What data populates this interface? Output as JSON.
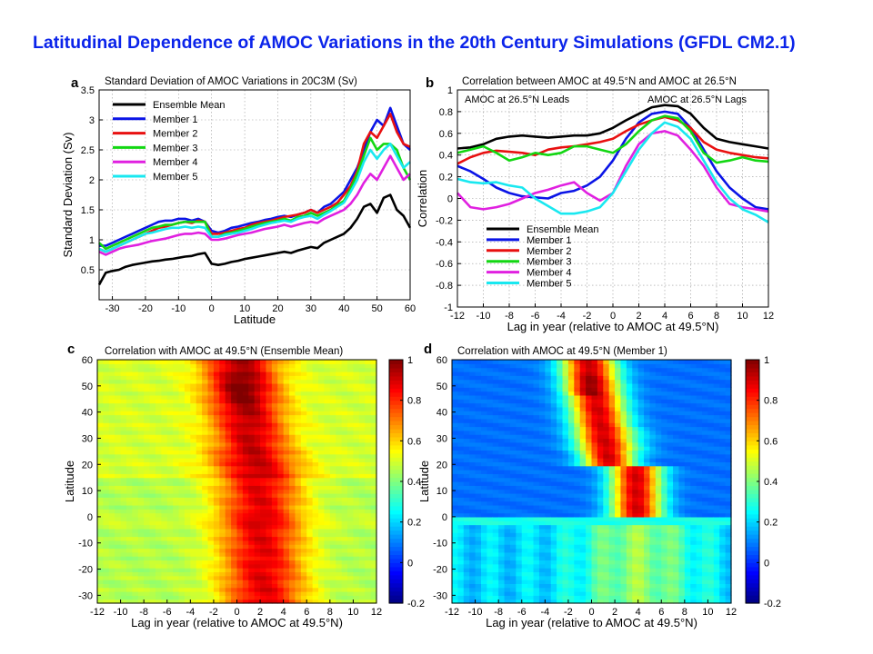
{
  "slide_title": "Latitudinal Dependence of AMOC Variations in the 20th Century Simulations (GFDL CM2.1)",
  "colors": {
    "title": "#0b24ea",
    "Ensemble Mean": "#000000",
    "Member 1": "#0a14e6",
    "Member 2": "#e81010",
    "Member 3": "#12d712",
    "Member 4": "#e020e0",
    "Member 5": "#19e8f0"
  },
  "chart_data": [
    {
      "panel": "a",
      "type": "line",
      "title": "Standard Deviation of AMOC Variations in 20C3M (Sv)",
      "xlabel": "Latitude",
      "ylabel": "Standard Deviation (Sv)",
      "xlim": [
        -34,
        60
      ],
      "ylim": [
        0,
        3.5
      ],
      "xticks": [
        -30,
        -20,
        -10,
        0,
        10,
        20,
        30,
        40,
        50,
        60
      ],
      "yticks": [
        0.5,
        1,
        1.5,
        2,
        2.5,
        3,
        3.5
      ],
      "grid": true,
      "legend": "top-left",
      "x": [
        -34,
        -32,
        -30,
        -28,
        -26,
        -24,
        -22,
        -20,
        -18,
        -16,
        -14,
        -12,
        -10,
        -8,
        -6,
        -4,
        -2,
        0,
        2,
        4,
        6,
        8,
        10,
        12,
        14,
        16,
        18,
        20,
        22,
        24,
        26,
        28,
        30,
        32,
        34,
        36,
        38,
        40,
        42,
        44,
        46,
        48,
        50,
        52,
        54,
        56,
        58,
        60
      ],
      "series": [
        {
          "name": "Ensemble Mean",
          "values": [
            0.25,
            0.45,
            0.48,
            0.5,
            0.55,
            0.58,
            0.6,
            0.62,
            0.64,
            0.65,
            0.67,
            0.68,
            0.7,
            0.72,
            0.73,
            0.76,
            0.78,
            0.6,
            0.58,
            0.6,
            0.63,
            0.65,
            0.68,
            0.7,
            0.72,
            0.74,
            0.76,
            0.78,
            0.8,
            0.78,
            0.82,
            0.85,
            0.88,
            0.86,
            0.95,
            1.0,
            1.05,
            1.1,
            1.2,
            1.35,
            1.55,
            1.6,
            1.45,
            1.7,
            1.75,
            1.5,
            1.4,
            1.2
          ]
        },
        {
          "name": "Member 1",
          "values": [
            0.9,
            0.9,
            0.95,
            1.0,
            1.05,
            1.1,
            1.15,
            1.2,
            1.25,
            1.3,
            1.32,
            1.32,
            1.35,
            1.35,
            1.32,
            1.35,
            1.3,
            1.15,
            1.12,
            1.15,
            1.2,
            1.22,
            1.25,
            1.28,
            1.3,
            1.33,
            1.35,
            1.38,
            1.4,
            1.38,
            1.42,
            1.45,
            1.5,
            1.45,
            1.55,
            1.6,
            1.7,
            1.8,
            2.0,
            2.2,
            2.5,
            2.8,
            3.0,
            2.9,
            3.2,
            2.9,
            2.6,
            2.5
          ]
        },
        {
          "name": "Member 2",
          "values": [
            0.85,
            0.8,
            0.85,
            0.9,
            0.95,
            1.0,
            1.05,
            1.1,
            1.15,
            1.2,
            1.22,
            1.25,
            1.28,
            1.3,
            1.28,
            1.32,
            1.3,
            1.1,
            1.1,
            1.12,
            1.15,
            1.18,
            1.2,
            1.25,
            1.28,
            1.3,
            1.32,
            1.35,
            1.38,
            1.4,
            1.42,
            1.45,
            1.5,
            1.45,
            1.5,
            1.55,
            1.62,
            1.75,
            1.9,
            2.15,
            2.6,
            2.8,
            2.7,
            2.9,
            3.1,
            2.8,
            2.6,
            2.55
          ]
        },
        {
          "name": "Member 3",
          "values": [
            0.95,
            0.85,
            0.9,
            0.95,
            1.0,
            1.05,
            1.1,
            1.15,
            1.2,
            1.22,
            1.25,
            1.25,
            1.28,
            1.3,
            1.3,
            1.3,
            1.3,
            1.05,
            1.05,
            1.1,
            1.12,
            1.15,
            1.18,
            1.22,
            1.25,
            1.28,
            1.3,
            1.32,
            1.35,
            1.32,
            1.38,
            1.4,
            1.45,
            1.4,
            1.45,
            1.5,
            1.58,
            1.65,
            1.85,
            2.1,
            2.4,
            2.7,
            2.5,
            2.6,
            2.6,
            2.5,
            2.2,
            2.0
          ]
        },
        {
          "name": "Member 4",
          "values": [
            0.8,
            0.75,
            0.8,
            0.85,
            0.88,
            0.9,
            0.92,
            0.95,
            0.98,
            1.0,
            1.02,
            1.05,
            1.08,
            1.1,
            1.1,
            1.12,
            1.1,
            1.0,
            1.0,
            1.02,
            1.05,
            1.08,
            1.1,
            1.12,
            1.15,
            1.18,
            1.2,
            1.22,
            1.25,
            1.22,
            1.25,
            1.28,
            1.3,
            1.28,
            1.35,
            1.4,
            1.45,
            1.5,
            1.6,
            1.75,
            1.95,
            2.1,
            2.0,
            2.2,
            2.4,
            2.2,
            2.0,
            2.1
          ]
        },
        {
          "name": "Member 5",
          "values": [
            0.85,
            0.8,
            0.85,
            0.9,
            0.95,
            1.0,
            1.05,
            1.1,
            1.12,
            1.15,
            1.18,
            1.2,
            1.2,
            1.22,
            1.2,
            1.22,
            1.2,
            1.05,
            1.05,
            1.08,
            1.1,
            1.12,
            1.15,
            1.18,
            1.22,
            1.25,
            1.28,
            1.3,
            1.32,
            1.3,
            1.35,
            1.38,
            1.4,
            1.35,
            1.42,
            1.48,
            1.55,
            1.62,
            1.8,
            2.0,
            2.3,
            2.5,
            2.35,
            2.5,
            2.6,
            2.4,
            2.2,
            2.3
          ]
        }
      ]
    },
    {
      "panel": "b",
      "type": "line",
      "title": "Correlation between AMOC at 49.5°N  and AMOC at 26.5°N",
      "annotations": [
        "AMOC at 26.5°N Leads",
        "AMOC at 26.5°N Lags"
      ],
      "xlabel": "Lag in year (relative to AMOC at 49.5°N)",
      "ylabel": "Correlation",
      "xlim": [
        -12,
        12
      ],
      "ylim": [
        -1,
        1
      ],
      "xticks": [
        -12,
        -10,
        -8,
        -6,
        -4,
        -2,
        0,
        2,
        4,
        6,
        8,
        10,
        12
      ],
      "yticks": [
        -1,
        -0.8,
        -0.6,
        -0.4,
        -0.2,
        0,
        0.2,
        0.4,
        0.6,
        0.8,
        1
      ],
      "grid": true,
      "legend": "bottom-left",
      "x": [
        -12,
        -11,
        -10,
        -9,
        -8,
        -7,
        -6,
        -5,
        -4,
        -3,
        -2,
        -1,
        0,
        1,
        2,
        3,
        4,
        5,
        6,
        7,
        8,
        9,
        10,
        11,
        12
      ],
      "series": [
        {
          "name": "Ensemble Mean",
          "values": [
            0.46,
            0.47,
            0.5,
            0.55,
            0.57,
            0.58,
            0.57,
            0.56,
            0.57,
            0.58,
            0.58,
            0.6,
            0.65,
            0.72,
            0.78,
            0.84,
            0.86,
            0.85,
            0.78,
            0.65,
            0.55,
            0.52,
            0.5,
            0.48,
            0.46
          ]
        },
        {
          "name": "Member 1",
          "values": [
            0.3,
            0.25,
            0.18,
            0.1,
            0.05,
            0.02,
            0.01,
            0.0,
            0.05,
            0.07,
            0.12,
            0.2,
            0.35,
            0.55,
            0.7,
            0.78,
            0.8,
            0.78,
            0.65,
            0.45,
            0.25,
            0.1,
            0.0,
            -0.08,
            -0.1
          ]
        },
        {
          "name": "Member 2",
          "values": [
            0.32,
            0.38,
            0.42,
            0.44,
            0.43,
            0.42,
            0.4,
            0.45,
            0.47,
            0.48,
            0.5,
            0.52,
            0.55,
            0.62,
            0.68,
            0.72,
            0.75,
            0.72,
            0.65,
            0.52,
            0.45,
            0.42,
            0.4,
            0.38,
            0.37
          ]
        },
        {
          "name": "Member 3",
          "values": [
            0.42,
            0.45,
            0.48,
            0.42,
            0.35,
            0.38,
            0.42,
            0.4,
            0.42,
            0.48,
            0.48,
            0.45,
            0.42,
            0.5,
            0.62,
            0.72,
            0.76,
            0.74,
            0.62,
            0.42,
            0.33,
            0.35,
            0.38,
            0.35,
            0.34
          ]
        },
        {
          "name": "Member 4",
          "values": [
            0.05,
            -0.08,
            -0.1,
            -0.08,
            -0.05,
            0.0,
            0.05,
            0.08,
            0.12,
            0.15,
            0.05,
            -0.02,
            0.05,
            0.3,
            0.5,
            0.6,
            0.62,
            0.58,
            0.45,
            0.3,
            0.1,
            -0.05,
            -0.08,
            -0.1,
            -0.12
          ]
        },
        {
          "name": "Member 5",
          "values": [
            0.18,
            0.15,
            0.14,
            0.15,
            0.12,
            0.1,
            0.0,
            -0.07,
            -0.14,
            -0.14,
            -0.12,
            -0.08,
            0.05,
            0.25,
            0.45,
            0.6,
            0.7,
            0.66,
            0.55,
            0.35,
            0.15,
            0.0,
            -0.1,
            -0.15,
            -0.22
          ]
        }
      ]
    },
    {
      "panel": "c",
      "type": "heatmap",
      "title": "Correlation with AMOC at 49.5°N (Ensemble Mean)",
      "xlabel": "Lag in year (relative to AMOC at 49.5°N)",
      "ylabel": "Latitude",
      "xlim": [
        -12,
        12
      ],
      "ylim": [
        -33,
        60
      ],
      "xticks": [
        -12,
        -10,
        -8,
        -6,
        -4,
        -2,
        0,
        2,
        4,
        6,
        8,
        10,
        12
      ],
      "yticks": [
        -30,
        -20,
        -10,
        0,
        10,
        20,
        30,
        40,
        50,
        60
      ],
      "colorbar": {
        "min": -0.2,
        "max": 1,
        "ticks": [
          -0.2,
          0,
          0.2,
          0.4,
          0.6,
          0.8,
          1
        ]
      },
      "description_values": {
        "peak": {
          "lag": 0,
          "lat": 50,
          "value": 1.0
        },
        "background": 0.5
      }
    },
    {
      "panel": "d",
      "type": "heatmap",
      "title": "Correlation with AMOC at 49.5°N (Member 1)",
      "xlabel": "Lag in year (relative to AMOC at 49.5°N)",
      "ylabel": "Latitude",
      "xlim": [
        -12,
        12
      ],
      "ylim": [
        -33,
        60
      ],
      "xticks": [
        -12,
        -10,
        -8,
        -6,
        -4,
        -2,
        0,
        2,
        4,
        6,
        8,
        10,
        12
      ],
      "yticks": [
        -30,
        -20,
        -10,
        0,
        10,
        20,
        30,
        40,
        50,
        60
      ],
      "colorbar": {
        "min": -0.2,
        "max": 1,
        "ticks": [
          -0.2,
          0,
          0.2,
          0.4,
          0.6,
          0.8,
          1
        ]
      },
      "description_values": {
        "peak": {
          "lag": -1,
          "lat": 50,
          "value": 1.0
        },
        "background": 0.1
      }
    }
  ]
}
